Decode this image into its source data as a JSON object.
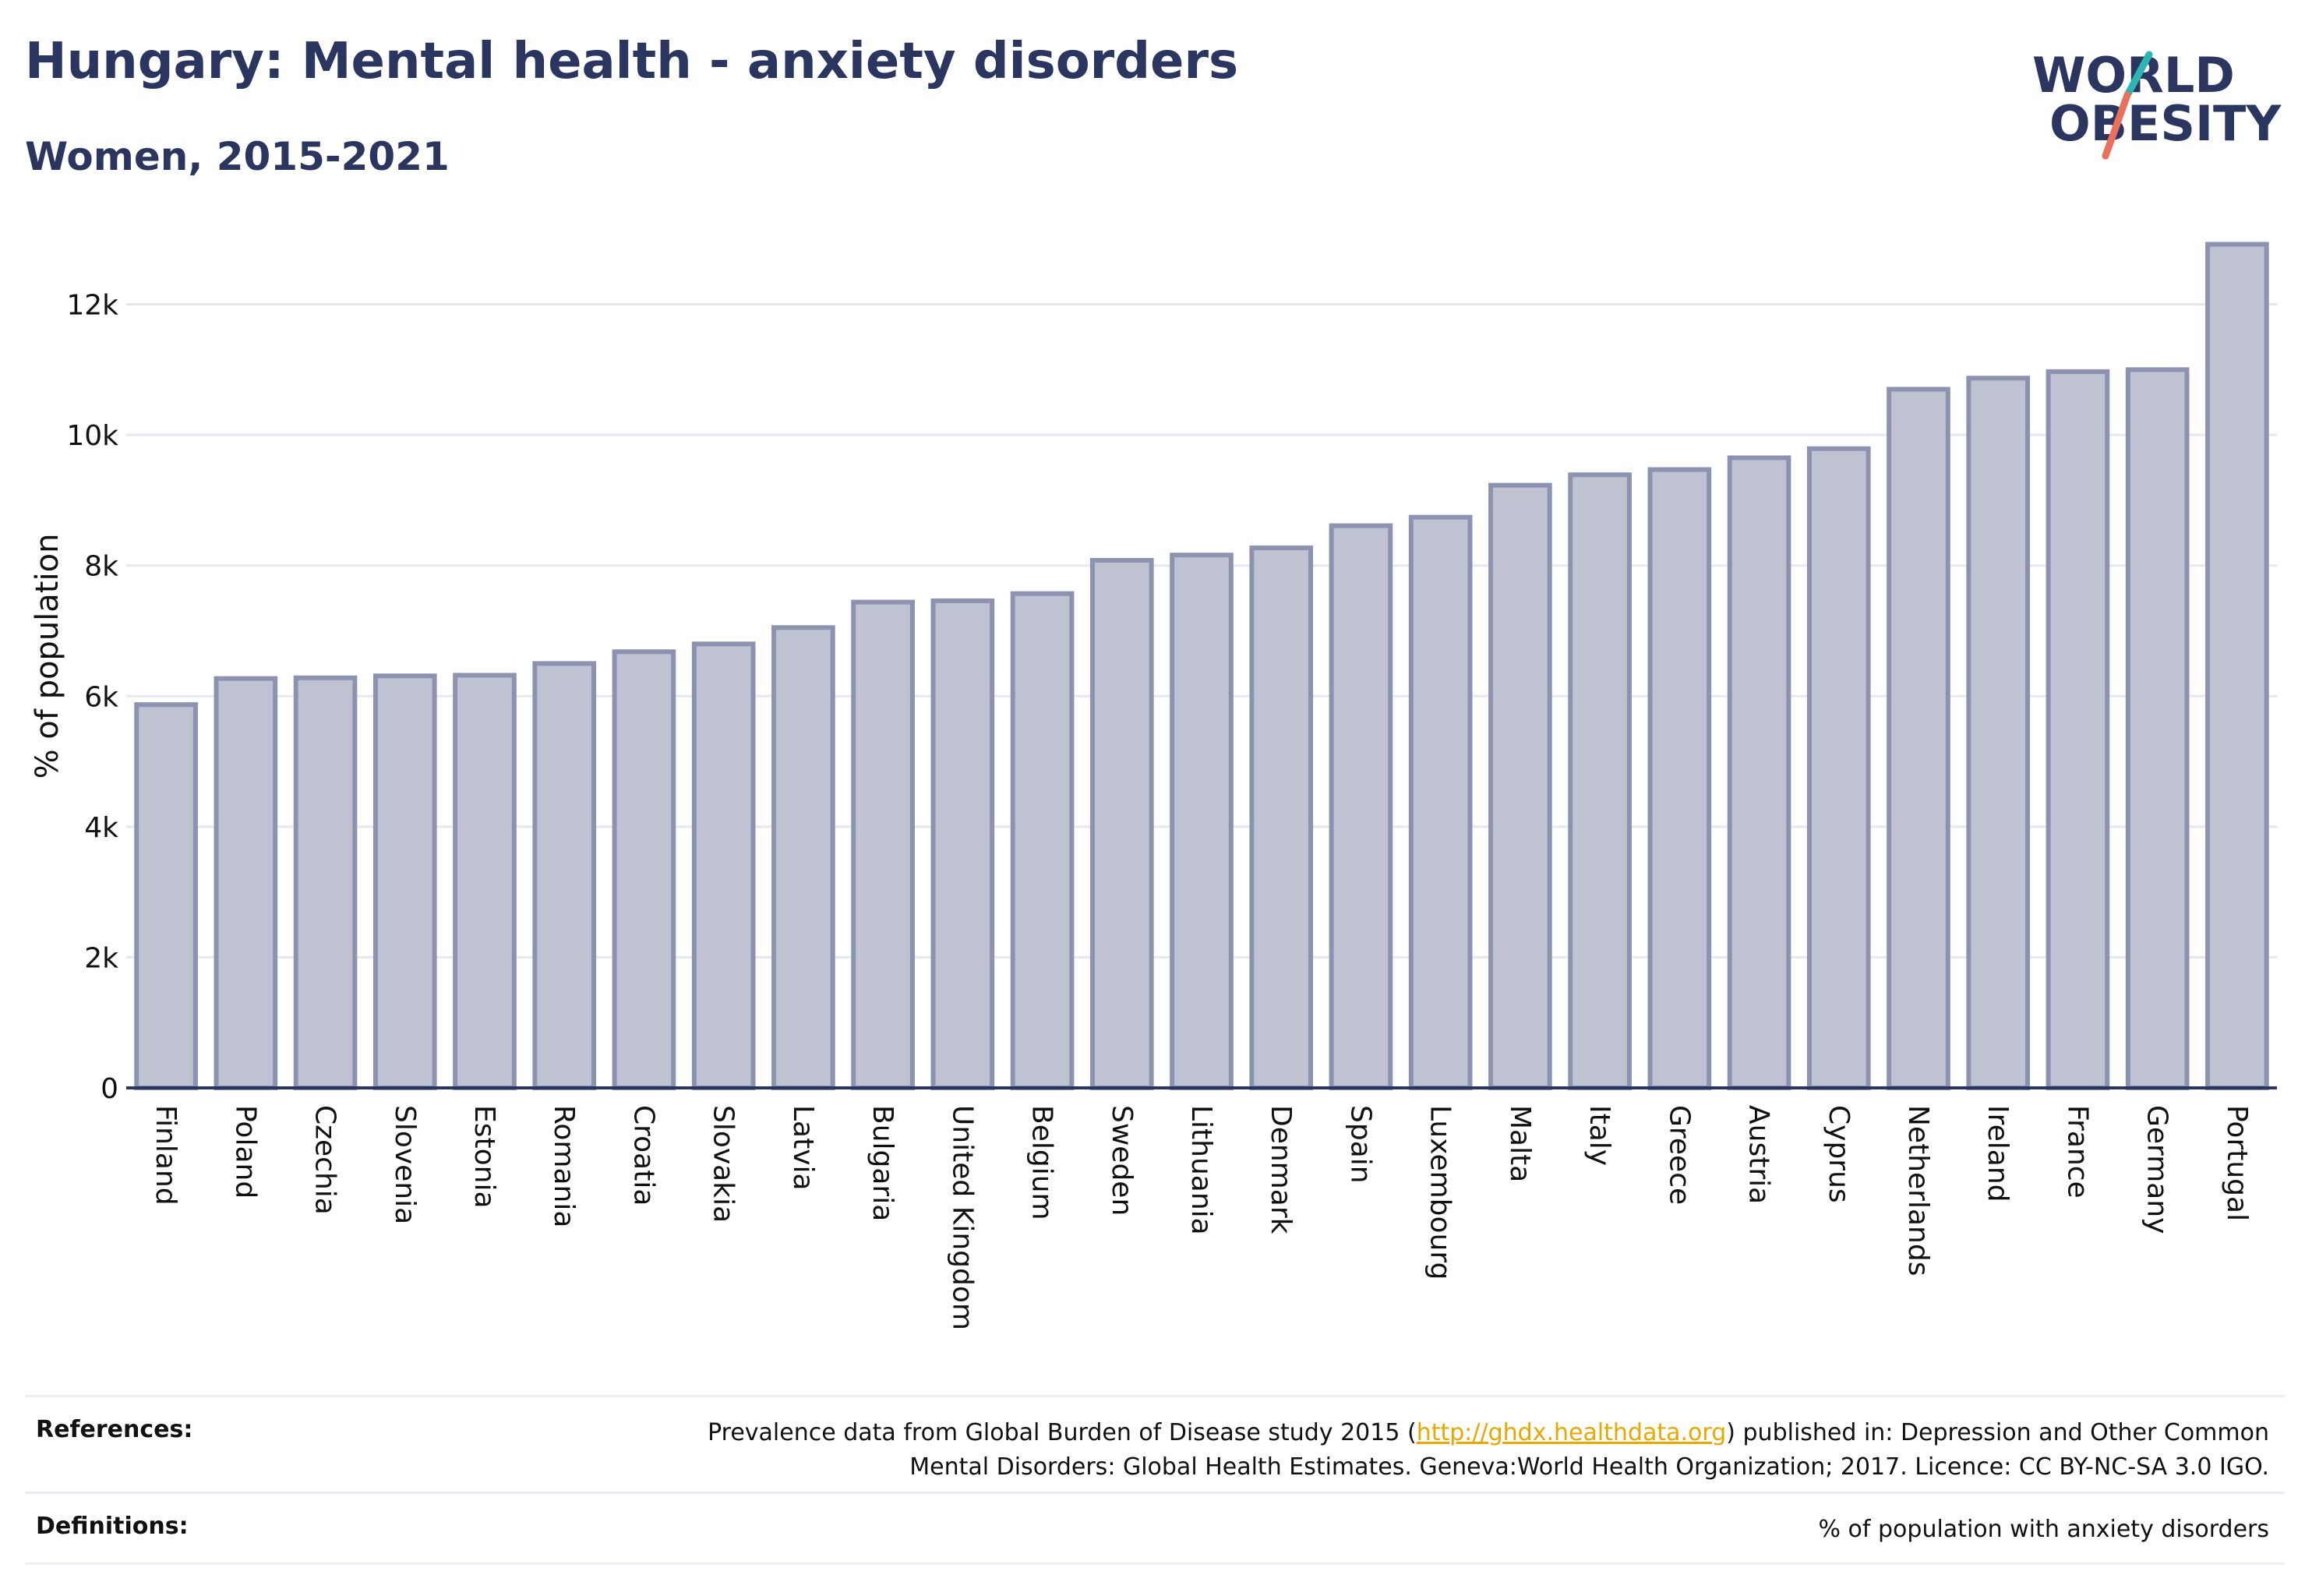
{
  "header": {
    "title": "Hungary: Mental health - anxiety disorders",
    "subtitle": "Women, 2015-2021"
  },
  "logo": {
    "line1": "WORLD",
    "line2": "OBESITY",
    "colors": {
      "text": "#2b3660",
      "slash_teal": "#2bb6b3",
      "slash_red": "#e8705c"
    }
  },
  "chart_data": {
    "type": "bar",
    "categories": [
      "Finland",
      "Poland",
      "Czechia",
      "Slovenia",
      "Estonia",
      "Romania",
      "Croatia",
      "Slovakia",
      "Latvia",
      "Bulgaria",
      "United Kingdom",
      "Belgium",
      "Sweden",
      "Lithuania",
      "Denmark",
      "Spain",
      "Luxembourg",
      "Malta",
      "Italy",
      "Greece",
      "Austria",
      "Cyprus",
      "Netherlands",
      "Ireland",
      "France",
      "Germany",
      "Portugal"
    ],
    "values": [
      5870,
      6270,
      6280,
      6310,
      6320,
      6500,
      6680,
      6800,
      7050,
      7440,
      7460,
      7570,
      8080,
      8160,
      8270,
      8610,
      8740,
      9230,
      9390,
      9470,
      9650,
      9790,
      10700,
      10870,
      10970,
      11000,
      12920
    ],
    "ylabel": "% of population",
    "xlabel": "",
    "ylim": [
      0,
      13200
    ],
    "yticks": [
      0,
      2000,
      4000,
      6000,
      8000,
      10000,
      12000
    ],
    "ytick_labels": [
      "0",
      "2k",
      "4k",
      "6k",
      "8k",
      "10k",
      "12k"
    ],
    "grid": true,
    "colors": {
      "bar_fill": "#bfc3d1",
      "bar_stroke": "#8c93b0",
      "axis": "#2b3660",
      "grid": "#e6e8ee"
    }
  },
  "footer": {
    "references_label": "References:",
    "references_before": "Prevalence data from Global Burden of Disease study 2015 (",
    "references_link": "http://ghdx.healthdata.org",
    "references_after": ") published in: Depression and Other Common",
    "references_line2": "Mental Disorders: Global Health Estimates. Geneva:World Health Organization; 2017. Licence: CC BY-NC-SA 3.0 IGO.",
    "definitions_label": "Definitions:",
    "definitions_text": "% of population with anxiety disorders"
  }
}
